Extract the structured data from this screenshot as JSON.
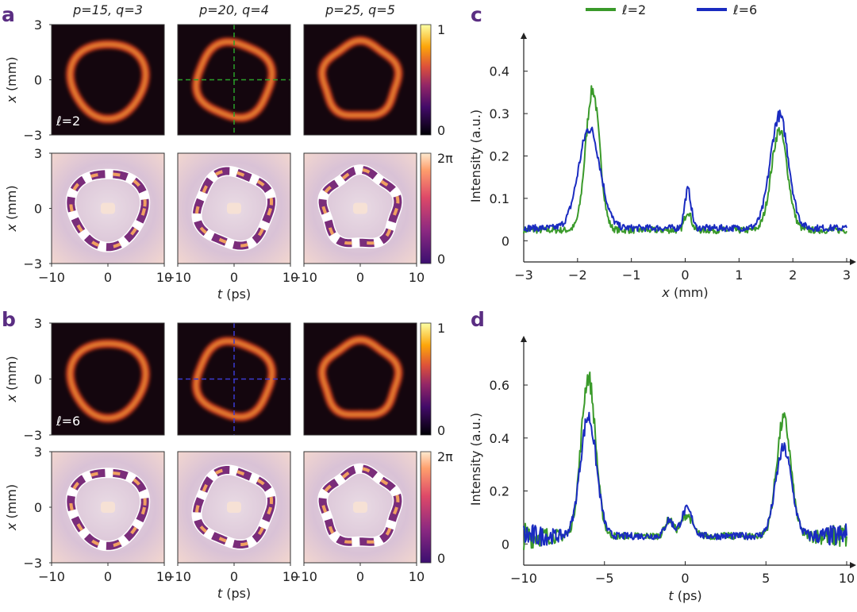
{
  "panel_labels": {
    "a": "a",
    "b": "b",
    "c": "c",
    "d": "d"
  },
  "column_titles": [
    "p=15, q=3",
    "p=20, q=4",
    "p=25, q=5"
  ],
  "maps": {
    "y_label": "x (mm)",
    "x_label": "t (ps)",
    "y_ticks": [
      "3",
      "0",
      "−3"
    ],
    "x_ticks": [
      "−10",
      "0",
      "10"
    ],
    "intensity_colorbar_ticks": [
      "1",
      "0"
    ],
    "phase_colorbar_ticks": [
      "2π",
      "0"
    ],
    "row_a_label": "ℓ=2",
    "row_b_label": "ℓ=6",
    "row_a_crosshair_color": "#2aa02a",
    "row_b_crosshair_color": "#3a3ad0"
  },
  "colors": {
    "l2": "#3a9a2a",
    "l6": "#1a2bc0",
    "label": "#5a2d82"
  },
  "legend": {
    "items": [
      "ℓ=2",
      "ℓ=6"
    ]
  },
  "chart_data": [
    {
      "panel": "c",
      "type": "line",
      "xlabel": "x (mm)",
      "ylabel": "Intensity (a.u.)",
      "xlim": [
        -3,
        3
      ],
      "ylim": [
        -0.05,
        0.45
      ],
      "x_ticks": [
        -3,
        -2,
        -1,
        0,
        1,
        2,
        3
      ],
      "y_ticks": [
        0,
        0.1,
        0.2,
        0.3,
        0.4
      ],
      "x_tick_labels": [
        "−3",
        "−2",
        "−1",
        "0",
        "1",
        "2",
        "3"
      ],
      "y_tick_labels": [
        "0",
        "0.1",
        "0.2",
        "0.3",
        "0.4"
      ],
      "series": [
        {
          "name": "ℓ=2",
          "color": "#3a9a2a",
          "baseline": 0.025,
          "noise": 0.012,
          "peaks": [
            {
              "center": -1.72,
              "amp": 0.33,
              "width": 0.13
            },
            {
              "center": 0.05,
              "amp": 0.045,
              "width": 0.06
            },
            {
              "center": 1.75,
              "amp": 0.235,
              "width": 0.15
            }
          ]
        },
        {
          "name": "ℓ=6",
          "color": "#1a2bc0",
          "baseline": 0.03,
          "noise": 0.012,
          "peaks": [
            {
              "center": -1.78,
              "amp": 0.235,
              "width": 0.2
            },
            {
              "center": 0.05,
              "amp": 0.09,
              "width": 0.06
            },
            {
              "center": 1.75,
              "amp": 0.265,
              "width": 0.17
            }
          ]
        }
      ]
    },
    {
      "panel": "d",
      "type": "line",
      "xlabel": "t (ps)",
      "ylabel": "Intensity (a.u.)",
      "xlim": [
        -10,
        10
      ],
      "ylim": [
        -0.08,
        0.72
      ],
      "x_ticks": [
        -10,
        -5,
        0,
        5,
        10
      ],
      "y_ticks": [
        0,
        0.2,
        0.4,
        0.6
      ],
      "x_tick_labels": [
        "−10",
        "−5",
        "0",
        "5",
        "10"
      ],
      "y_tick_labels": [
        "0",
        "0.2",
        "0.4",
        "0.6"
      ],
      "series": [
        {
          "name": "ℓ=2",
          "color": "#3a9a2a",
          "baseline": 0.03,
          "noise": 0.02,
          "edge_noise": 0.06,
          "peaks": [
            {
              "center": -6.0,
              "amp": 0.6,
              "width": 0.45
            },
            {
              "center": -1.0,
              "amp": 0.06,
              "width": 0.25
            },
            {
              "center": 0.1,
              "amp": 0.08,
              "width": 0.35
            },
            {
              "center": 6.1,
              "amp": 0.44,
              "width": 0.45
            }
          ]
        },
        {
          "name": "ℓ=6",
          "color": "#1a2bc0",
          "baseline": 0.03,
          "noise": 0.02,
          "edge_noise": 0.06,
          "peaks": [
            {
              "center": -6.0,
              "amp": 0.45,
              "width": 0.5
            },
            {
              "center": -1.0,
              "amp": 0.06,
              "width": 0.25
            },
            {
              "center": 0.1,
              "amp": 0.1,
              "width": 0.35
            },
            {
              "center": 6.1,
              "amp": 0.33,
              "width": 0.5
            }
          ]
        }
      ]
    }
  ]
}
